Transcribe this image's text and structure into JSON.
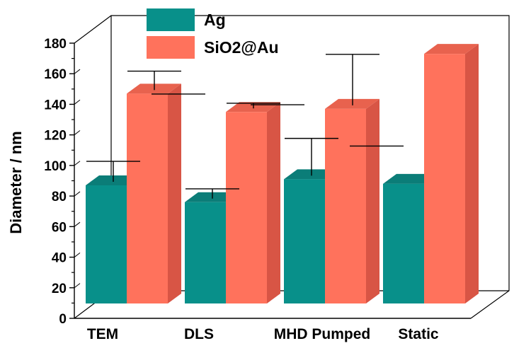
{
  "chart_data": {
    "type": "bar",
    "style": "3d-clustered",
    "title": "",
    "xlabel": "",
    "ylabel": "Diameter / nm",
    "ylim": [
      0,
      180
    ],
    "yticks": [
      0,
      20,
      40,
      60,
      80,
      100,
      120,
      140,
      160,
      180
    ],
    "categories": [
      "TEM",
      "DLS",
      "MHD Pumped",
      "Static"
    ],
    "series": [
      {
        "name": "Ag",
        "color": "#08908a",
        "side_color": "#066f6a",
        "top_color": "#0b7d78",
        "values": [
          87,
          76,
          91,
          88
        ],
        "error_upper": [
          99,
          81,
          114,
          null
        ],
        "error_lower": [
          null,
          null,
          null,
          null
        ]
      },
      {
        "name": "SiO2@Au",
        "color": "#ff725c",
        "side_color": "#d85545",
        "top_color": "#e8624e",
        "values": [
          147,
          135,
          137,
          173
        ],
        "error_upper": [
          158,
          137,
          169,
          null
        ],
        "error_lower": [
          143,
          136,
          109,
          null
        ]
      }
    ],
    "legend": {
      "position": "top",
      "entries": [
        "Ag",
        "SiO2@Au"
      ]
    },
    "grid": false
  }
}
